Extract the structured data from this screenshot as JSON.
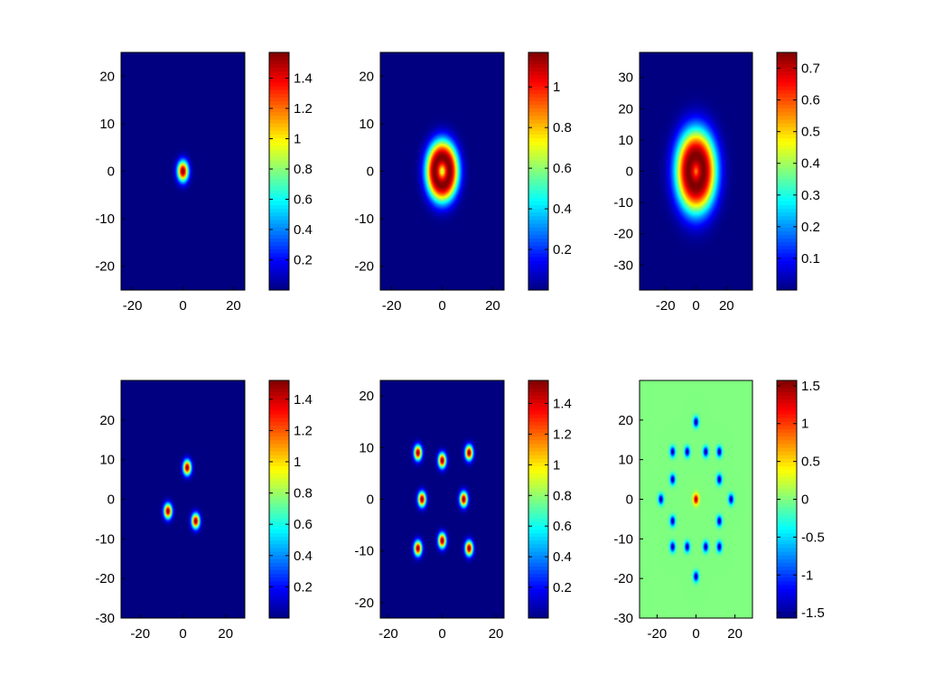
{
  "chart_data": [
    {
      "type": "heatmap",
      "title": "",
      "xlabel": "",
      "ylabel": "",
      "xlim": [
        -24.5,
        24.5
      ],
      "ylim": [
        -25,
        25
      ],
      "xticks": [
        -20,
        0,
        20
      ],
      "yticks": [
        -20,
        -10,
        0,
        10,
        20
      ],
      "colormap": "jet",
      "clim": [
        0,
        1.57
      ],
      "colorbar_ticks": [
        0.2,
        0.4,
        0.6,
        0.8,
        1,
        1.2,
        1.4
      ],
      "peaks": [
        {
          "x": 0,
          "y": 0,
          "radius": 0,
          "width": 1.5,
          "amp": 1.57
        }
      ],
      "background": 0
    },
    {
      "type": "heatmap",
      "title": "",
      "xlabel": "",
      "ylabel": "",
      "xlim": [
        -24.5,
        24.5
      ],
      "ylim": [
        -25,
        25
      ],
      "xticks": [
        -20,
        0,
        20
      ],
      "yticks": [
        -20,
        -10,
        0,
        10,
        20
      ],
      "colormap": "jet",
      "clim": [
        0,
        1.17
      ],
      "colorbar_ticks": [
        0.2,
        0.4,
        0.6,
        0.8,
        1
      ],
      "peaks": [
        {
          "x": 0,
          "y": 0,
          "radius": 3,
          "width": 2.6,
          "amp": 1.17
        }
      ],
      "background": 0
    },
    {
      "type": "heatmap",
      "title": "",
      "xlabel": "",
      "ylabel": "",
      "xlim": [
        -37,
        37
      ],
      "ylim": [
        -38,
        38
      ],
      "xticks": [
        -20,
        0,
        20
      ],
      "yticks": [
        -30,
        -20,
        -10,
        0,
        10,
        20,
        30
      ],
      "colormap": "jet",
      "clim": [
        0,
        0.75
      ],
      "colorbar_ticks": [
        0.1,
        0.2,
        0.3,
        0.4,
        0.5,
        0.6,
        0.7
      ],
      "peaks": [
        {
          "x": 0,
          "y": 0,
          "radius": 5,
          "width": 6.2,
          "amp": 0.75
        }
      ],
      "background": 0
    },
    {
      "type": "heatmap",
      "title": "",
      "xlabel": "",
      "ylabel": "",
      "xlim": [
        -29,
        29
      ],
      "ylim": [
        -30,
        30
      ],
      "xticks": [
        -20,
        0,
        20
      ],
      "yticks": [
        -30,
        -20,
        -10,
        0,
        10,
        20
      ],
      "colormap": "jet",
      "clim": [
        0,
        1.52
      ],
      "colorbar_ticks": [
        0.2,
        0.4,
        0.6,
        0.8,
        1,
        1.2,
        1.4
      ],
      "peaks": [
        {
          "x": 2,
          "y": 8,
          "radius": 0,
          "width": 1.3,
          "amp": 1.52
        },
        {
          "x": -7,
          "y": -3,
          "radius": 0,
          "width": 1.3,
          "amp": 1.52
        },
        {
          "x": 6,
          "y": -5.5,
          "radius": 0,
          "width": 1.3,
          "amp": 1.52
        }
      ],
      "background": 0
    },
    {
      "type": "heatmap",
      "title": "",
      "xlabel": "",
      "ylabel": "",
      "xlim": [
        -23,
        23
      ],
      "ylim": [
        -23,
        23
      ],
      "xticks": [
        -20,
        0,
        20
      ],
      "yticks": [
        -20,
        -10,
        0,
        10,
        20
      ],
      "colormap": "jet",
      "clim": [
        0,
        1.55
      ],
      "colorbar_ticks": [
        0.2,
        0.4,
        0.6,
        0.8,
        1,
        1.2,
        1.4
      ],
      "peaks": [
        {
          "x": -9,
          "y": 9,
          "radius": 0,
          "width": 1.0,
          "amp": 1.55
        },
        {
          "x": 0,
          "y": 7.5,
          "radius": 0,
          "width": 1.0,
          "amp": 1.55
        },
        {
          "x": 10,
          "y": 9,
          "radius": 0,
          "width": 1.0,
          "amp": 1.55
        },
        {
          "x": -7.5,
          "y": 0,
          "radius": 0,
          "width": 1.0,
          "amp": 1.55
        },
        {
          "x": 8,
          "y": 0,
          "radius": 0,
          "width": 1.0,
          "amp": 1.55
        },
        {
          "x": -9,
          "y": -9.5,
          "radius": 0,
          "width": 1.0,
          "amp": 1.55
        },
        {
          "x": 0,
          "y": -8,
          "radius": 0,
          "width": 1.0,
          "amp": 1.55
        },
        {
          "x": 10,
          "y": -9.5,
          "radius": 0,
          "width": 1.0,
          "amp": 1.55
        }
      ],
      "background": 0
    },
    {
      "type": "heatmap",
      "title": "",
      "xlabel": "",
      "ylabel": "",
      "xlim": [
        -29,
        29
      ],
      "ylim": [
        -30,
        30
      ],
      "xticks": [
        -20,
        0,
        20
      ],
      "yticks": [
        -30,
        -20,
        -10,
        0,
        10,
        20
      ],
      "colormap": "jet",
      "clim": [
        -1.57,
        1.57
      ],
      "colorbar_ticks": [
        -1.5,
        -1,
        -0.5,
        0,
        0.5,
        1,
        1.5
      ],
      "peaks": [
        {
          "x": 0,
          "y": 0,
          "radius": 0,
          "width": 0.9,
          "amp": 1.5
        },
        {
          "x": 0,
          "y": 19.5,
          "radius": 0,
          "width": 0.9,
          "amp": -1.5
        },
        {
          "x": 0,
          "y": -19.5,
          "radius": 0,
          "width": 0.9,
          "amp": -1.5
        },
        {
          "x": -18,
          "y": 0,
          "radius": 0,
          "width": 0.9,
          "amp": -1.5
        },
        {
          "x": 18,
          "y": 0,
          "radius": 0,
          "width": 0.9,
          "amp": -1.5
        },
        {
          "x": -12,
          "y": 12,
          "radius": 0,
          "width": 0.9,
          "amp": -1.5
        },
        {
          "x": -4.5,
          "y": 12,
          "radius": 0,
          "width": 0.9,
          "amp": -1.5
        },
        {
          "x": 5,
          "y": 12,
          "radius": 0,
          "width": 0.9,
          "amp": -1.5
        },
        {
          "x": 12,
          "y": 12,
          "radius": 0,
          "width": 0.9,
          "amp": -1.5
        },
        {
          "x": -12,
          "y": 5,
          "radius": 0,
          "width": 0.9,
          "amp": -1.5
        },
        {
          "x": 12,
          "y": 5,
          "radius": 0,
          "width": 0.9,
          "amp": -1.5
        },
        {
          "x": -12,
          "y": -5.5,
          "radius": 0,
          "width": 0.9,
          "amp": -1.5
        },
        {
          "x": 12,
          "y": -5.5,
          "radius": 0,
          "width": 0.9,
          "amp": -1.5
        },
        {
          "x": -12,
          "y": -12,
          "radius": 0,
          "width": 0.9,
          "amp": -1.5
        },
        {
          "x": -4.5,
          "y": -12,
          "radius": 0,
          "width": 0.9,
          "amp": -1.5
        },
        {
          "x": 5,
          "y": -12,
          "radius": 0,
          "width": 0.9,
          "amp": -1.5
        },
        {
          "x": 12,
          "y": -12,
          "radius": 0,
          "width": 0.9,
          "amp": -1.5
        }
      ],
      "background": 0
    }
  ]
}
